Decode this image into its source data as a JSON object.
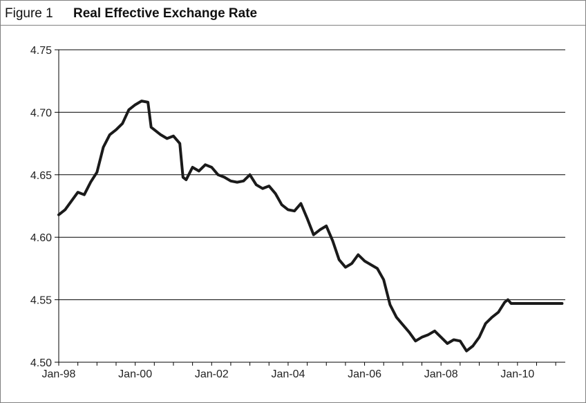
{
  "header": {
    "figure_label": "Figure 1",
    "title": "Real Effective Exchange Rate"
  },
  "chart_data": {
    "type": "line",
    "title": "Real Effective Exchange Rate",
    "xlabel": "",
    "ylabel": "",
    "ylim": [
      4.5,
      4.75
    ],
    "yticks": [
      4.5,
      4.55,
      4.6,
      4.65,
      4.7,
      4.75
    ],
    "ytick_labels": [
      "4.50",
      "4.55",
      "4.60",
      "4.65",
      "4.70",
      "4.75"
    ],
    "xlim": [
      "1998-01",
      "2011-04"
    ],
    "xtick_labels": [
      "Jan-98",
      "Jan-00",
      "Jan-02",
      "Jan-04",
      "Jan-06",
      "Jan-08",
      "Jan-10"
    ],
    "xticks": [
      "1998-01",
      "2000-01",
      "2002-01",
      "2004-01",
      "2006-01",
      "2008-01",
      "2010-01"
    ],
    "grid": "horizontal",
    "line_color": "#1a1a1a",
    "series": [
      {
        "x": [
          "1998-01",
          "1998-03",
          "1998-05",
          "1998-07",
          "1998-09",
          "1998-11",
          "1999-01",
          "1999-03",
          "1999-05",
          "1999-07",
          "1999-09",
          "1999-11",
          "2000-01",
          "2000-03",
          "2000-05",
          "2000-06",
          "2000-07",
          "2000-09",
          "2000-11",
          "2001-01",
          "2001-03",
          "2001-04",
          "2001-05",
          "2001-07",
          "2001-09",
          "2001-11",
          "2002-01",
          "2002-03",
          "2002-05",
          "2002-07",
          "2002-09",
          "2002-11",
          "2003-01",
          "2003-03",
          "2003-05",
          "2003-07",
          "2003-09",
          "2003-11",
          "2004-01",
          "2004-03",
          "2004-05",
          "2004-07",
          "2004-09",
          "2004-11",
          "2005-01",
          "2005-03",
          "2005-05",
          "2005-07",
          "2005-09",
          "2005-11",
          "2006-01",
          "2006-03",
          "2006-05",
          "2006-07",
          "2006-09",
          "2006-11",
          "2007-01",
          "2007-03",
          "2007-05",
          "2007-07",
          "2007-09",
          "2007-11",
          "2008-01",
          "2008-03",
          "2008-05",
          "2008-07",
          "2008-09",
          "2008-11",
          "2009-01",
          "2009-03",
          "2009-05",
          "2009-07",
          "2009-09",
          "2009-10",
          "2009-11",
          "2010-01",
          "2010-03",
          "2010-05",
          "2010-07",
          "2010-09",
          "2010-11",
          "2011-01",
          "2011-03"
        ],
        "y": [
          4.618,
          4.622,
          4.629,
          4.636,
          4.634,
          4.644,
          4.652,
          4.672,
          4.682,
          4.686,
          4.691,
          4.702,
          4.706,
          4.709,
          4.708,
          4.688,
          4.686,
          4.682,
          4.679,
          4.681,
          4.675,
          4.648,
          4.646,
          4.656,
          4.653,
          4.658,
          4.656,
          4.65,
          4.648,
          4.645,
          4.644,
          4.645,
          4.65,
          4.642,
          4.639,
          4.641,
          4.635,
          4.626,
          4.622,
          4.621,
          4.627,
          4.615,
          4.602,
          4.606,
          4.609,
          4.597,
          4.582,
          4.576,
          4.579,
          4.586,
          4.581,
          4.578,
          4.575,
          4.566,
          4.546,
          4.536,
          4.53,
          4.524,
          4.517,
          4.52,
          4.522,
          4.525,
          4.52,
          4.515,
          4.518,
          4.517,
          4.509,
          4.513,
          4.52,
          4.531,
          4.536,
          4.54,
          4.548,
          4.55,
          4.547,
          4.547,
          4.547,
          4.547,
          4.547,
          4.547,
          4.547,
          4.547,
          4.547
        ]
      }
    ]
  }
}
